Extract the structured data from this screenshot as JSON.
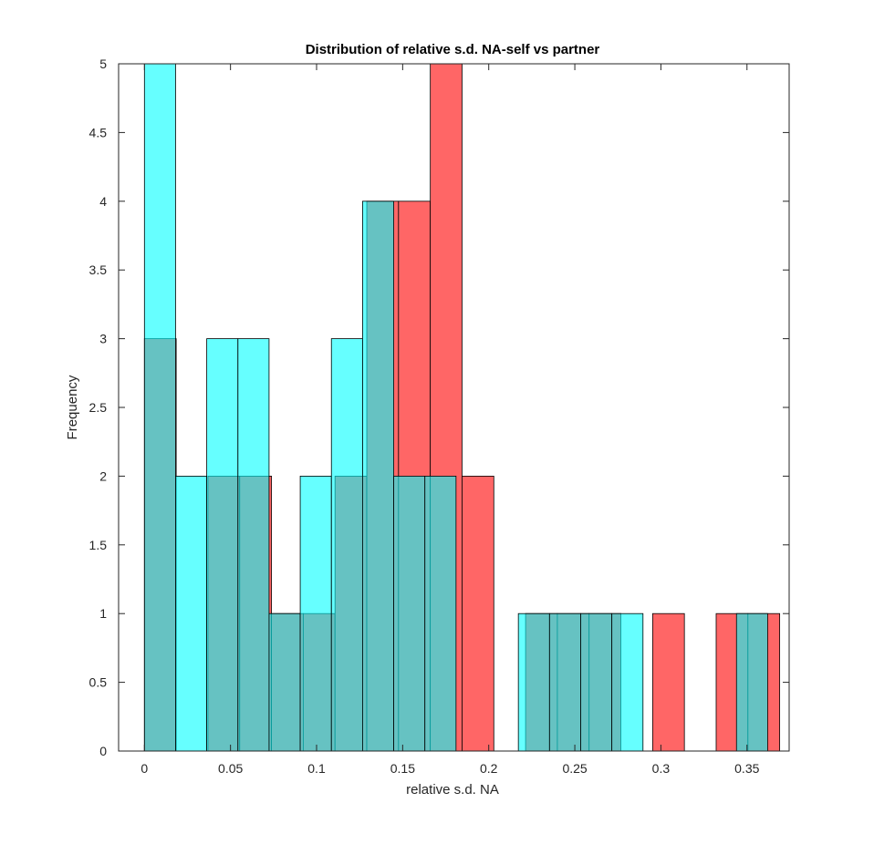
{
  "chart_data": {
    "type": "bar",
    "title": "Distribution of relative s.d. NA-self vs partner",
    "xlabel": "relative s.d. NA",
    "ylabel": "Frequency",
    "xlim": [
      -0.015,
      0.3745
    ],
    "ylim": [
      0,
      5
    ],
    "xticks": [
      "0",
      "0.05",
      "0.1",
      "0.15",
      "0.2",
      "0.25",
      "0.3",
      "0.35"
    ],
    "yticks": [
      "0",
      "0.5",
      "1",
      "1.5",
      "2",
      "2.5",
      "3",
      "3.5",
      "4",
      "4.5",
      "5"
    ],
    "grid": false,
    "legend": "none",
    "series": [
      {
        "color": "#ff6666",
        "bin_width": 0.01845,
        "bin_starts": [
          0,
          0.01845,
          0.0369,
          0.05535,
          0.0738,
          0.09225,
          0.1107,
          0.12915,
          0.1476,
          0.16605,
          0.1845,
          0.20295,
          0.2214,
          0.23985,
          0.2583,
          0.27675,
          0.2952,
          0.31365,
          0.3321,
          0.35055
        ],
        "values": [
          3,
          0,
          2,
          2,
          1,
          1,
          2,
          4,
          4,
          5,
          2,
          0,
          1,
          1,
          1,
          0,
          1,
          0,
          1,
          1
        ]
      },
      {
        "color": "#00ffff",
        "alpha": 0.6,
        "bin_width": 0.0181,
        "bin_starts": [
          0,
          0.0181,
          0.0362,
          0.0543,
          0.0724,
          0.0905,
          0.1086,
          0.1267,
          0.1448,
          0.1629,
          0.181,
          0.1991,
          0.2172,
          0.2353,
          0.2534,
          0.2715,
          0.2896,
          0.3077,
          0.3258,
          0.3439
        ],
        "values": [
          5,
          2,
          3,
          3,
          1,
          2,
          3,
          4,
          2,
          2,
          0,
          0,
          1,
          1,
          1,
          1,
          0,
          0,
          0,
          1
        ]
      }
    ]
  }
}
